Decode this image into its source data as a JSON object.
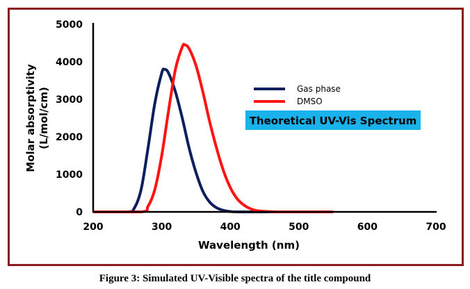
{
  "chart_data": {
    "type": "line",
    "title": "Theoretical UV-Vis Spectrum",
    "xlabel": "Wavelength (nm)",
    "ylabel": "Molar absorptivity (L/mol/cm)",
    "ylabel_lines": [
      "Molar absorptivity",
      "(L/mol/cm)"
    ],
    "xlim": [
      200,
      700
    ],
    "ylim": [
      0,
      5000
    ],
    "xticks": [
      200,
      300,
      400,
      500,
      600,
      700
    ],
    "yticks": [
      0,
      1000,
      2000,
      3000,
      4000,
      5000
    ],
    "grid": false,
    "legend_position": "center-right",
    "series": [
      {
        "name": "Gas phase",
        "color": "#0d1f5c",
        "x": [
          200,
          250,
          260,
          270,
          280,
          290,
          300,
          304,
          310,
          320,
          330,
          340,
          350,
          360,
          370,
          380,
          390,
          400,
          420,
          550
        ],
        "y": [
          0,
          0,
          100,
          600,
          1700,
          2900,
          3700,
          3800,
          3700,
          3200,
          2500,
          1700,
          1050,
          550,
          260,
          110,
          40,
          10,
          0,
          0
        ]
      },
      {
        "name": "DMSO",
        "color": "#ff1414",
        "x": [
          200,
          270,
          280,
          290,
          300,
          310,
          320,
          330,
          334,
          340,
          350,
          360,
          370,
          380,
          390,
          400,
          410,
          420,
          430,
          440,
          460,
          480,
          550
        ],
        "y": [
          0,
          0,
          150,
          600,
          1500,
          2700,
          3800,
          4400,
          4450,
          4350,
          3900,
          3200,
          2400,
          1700,
          1100,
          650,
          350,
          180,
          80,
          30,
          5,
          0,
          0
        ]
      }
    ]
  },
  "caption": "Figure 3: Simulated UV-Visible spectra of the title compound",
  "colors": {
    "frame": "#8b1a1f",
    "title_box": "#1ab2ea"
  }
}
